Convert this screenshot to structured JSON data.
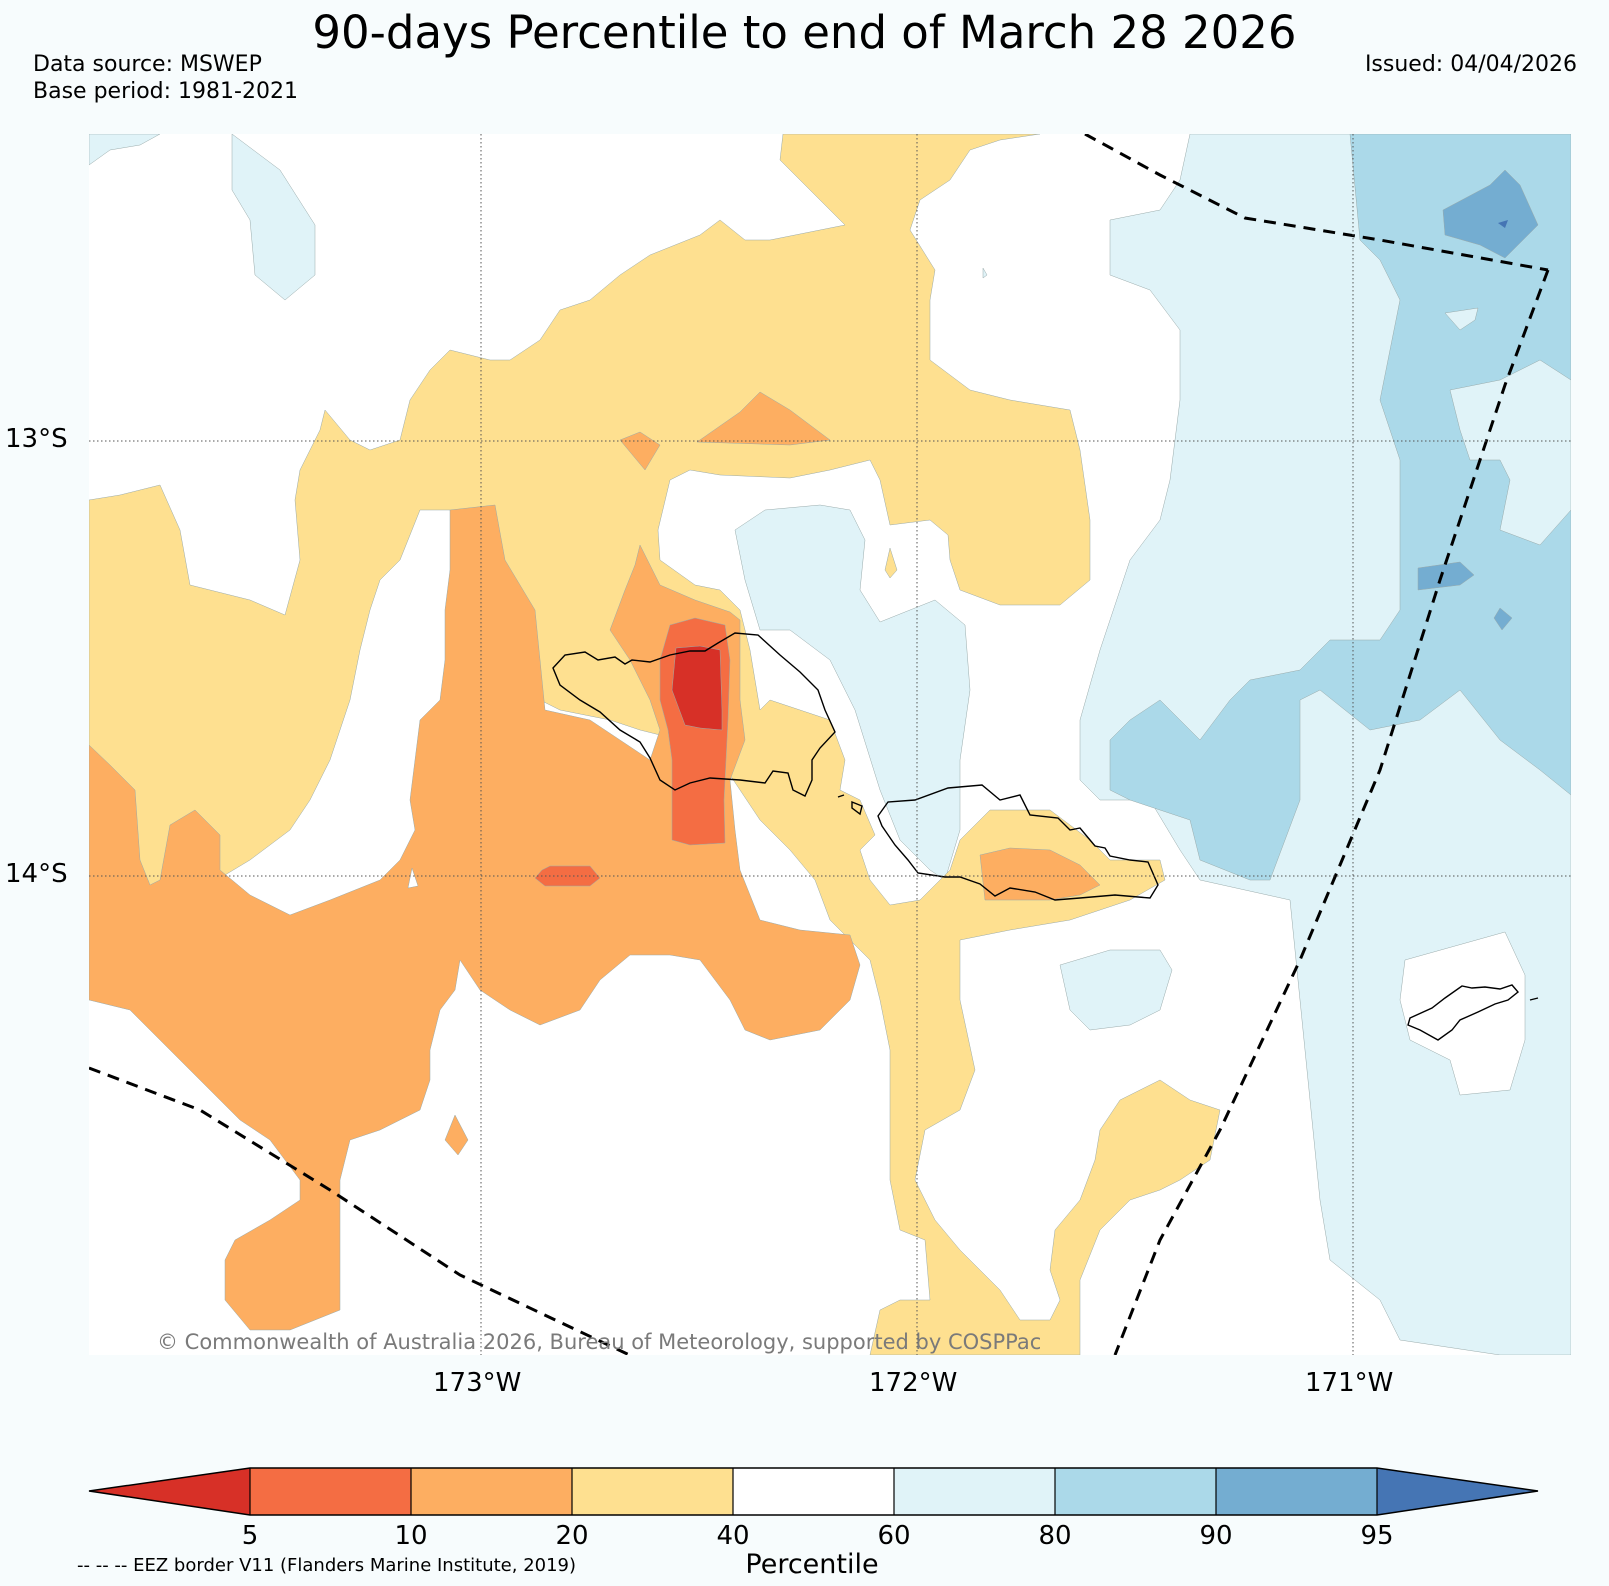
{
  "title": "90-days Percentile to end of March 28 2026",
  "data_source": "Data source: MSWEP",
  "base_period": "Base period: 1981-2021",
  "issued": "Issued: 04/04/2026",
  "copyright": "© Commonwealth of Australia 2026, Bureau of Meteorology, supported by COSPPac",
  "lat_labels": [
    "13°S",
    "14°S"
  ],
  "lon_labels": [
    "173°W",
    "172°W",
    "171°W"
  ],
  "colorbar": {
    "title": "Percentile",
    "ticks": [
      "5",
      "10",
      "20",
      "40",
      "60",
      "80",
      "90",
      "95"
    ],
    "colors": {
      "below_5": "#d73027",
      "5_10": "#f46d43",
      "10_20": "#fdae61",
      "20_40": "#fee090",
      "40_60": "#ffffff",
      "60_80": "#e0f3f8",
      "80_90": "#abd9e9",
      "90_95": "#74add1",
      "above_95": "#4575b4"
    }
  },
  "eez_note": "-- -- -- EEZ border V11 (Flanders Marine Institute, 2019)"
}
